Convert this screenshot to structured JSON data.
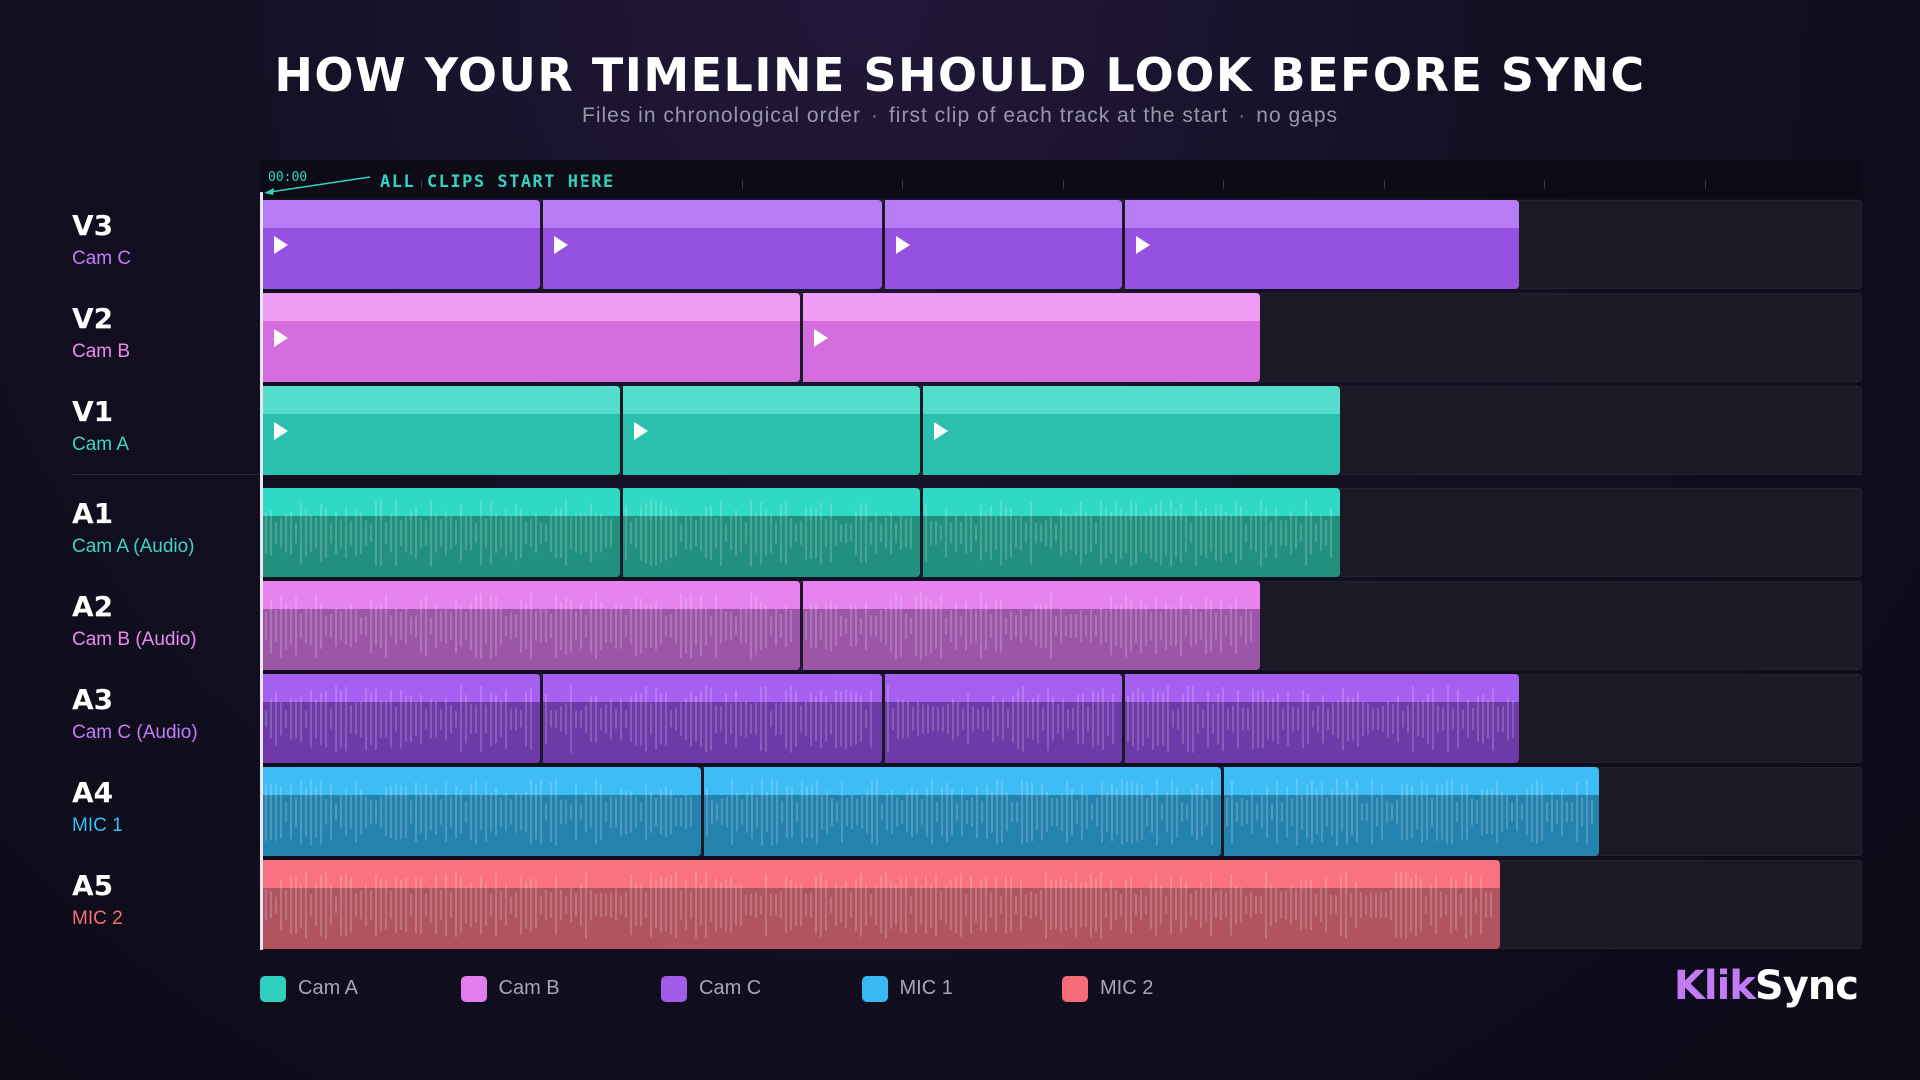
{
  "title": "HOW YOUR TIMELINE SHOULD LOOK BEFORE SYNC",
  "subtitle": {
    "part1": "Files in chronological order",
    "separator": "·",
    "part2": "first clip of each track at the start",
    "part3": "no gaps"
  },
  "ruler": {
    "timecode": "00:00",
    "label": "ALL CLIPS START HERE"
  },
  "colors": {
    "cam_a": {
      "top": "#54ddcd",
      "body": "#2bbfae",
      "audio_top": "#2fd9c3",
      "audio_body": "#22907f"
    },
    "cam_b": {
      "top": "#ee9cf4",
      "body": "#d46ede",
      "audio_top": "#e683ee",
      "audio_body": "#9d55a8"
    },
    "cam_c": {
      "top": "#b77cf5",
      "body": "#9551df",
      "audio_top": "#a560f2",
      "audio_body": "#6d3aa8"
    },
    "mic_1": {
      "audio_top": "#3dbcf6",
      "audio_body": "#2483ae"
    },
    "mic_2": {
      "audio_top": "#f8737f",
      "audio_body": "#b05560"
    }
  },
  "tracks": [
    {
      "code": "V3",
      "name": "Cam C",
      "kind": "video",
      "color": "cam_c",
      "name_color": "#c17cf7",
      "clips": [
        [
          0,
          17.5
        ],
        [
          17.5,
          38.8
        ],
        [
          38.8,
          53.8
        ],
        [
          53.8,
          78.6
        ]
      ]
    },
    {
      "code": "V2",
      "name": "Cam B",
      "kind": "video",
      "color": "cam_b",
      "name_color": "#ea8af2",
      "clips": [
        [
          0,
          33.7
        ],
        [
          33.7,
          62.4
        ]
      ]
    },
    {
      "code": "V1",
      "name": "Cam A",
      "kind": "video",
      "color": "cam_a",
      "name_color": "#3fd5c3",
      "clips": [
        [
          0,
          22.5
        ],
        [
          22.5,
          41.2
        ],
        [
          41.2,
          67.4
        ]
      ]
    },
    {
      "code": "A1",
      "name": "Cam A (Audio)",
      "kind": "audio",
      "color": "cam_a",
      "name_color": "#3fd5c3",
      "clips": [
        [
          0,
          22.5
        ],
        [
          22.5,
          41.2
        ],
        [
          41.2,
          67.4
        ]
      ]
    },
    {
      "code": "A2",
      "name": "Cam B (Audio)",
      "kind": "audio",
      "color": "cam_b",
      "name_color": "#ea8af2",
      "clips": [
        [
          0,
          33.7
        ],
        [
          33.7,
          62.4
        ]
      ]
    },
    {
      "code": "A3",
      "name": "Cam C (Audio)",
      "kind": "audio",
      "color": "cam_c",
      "name_color": "#c17cf7",
      "clips": [
        [
          0,
          17.5
        ],
        [
          17.5,
          38.8
        ],
        [
          38.8,
          53.8
        ],
        [
          53.8,
          78.6
        ]
      ]
    },
    {
      "code": "A4",
      "name": "MIC 1",
      "kind": "audio",
      "color": "mic_1",
      "name_color": "#3bbdf7",
      "clips": [
        [
          0,
          27.5
        ],
        [
          27.5,
          60.0
        ],
        [
          60.0,
          83.6
        ]
      ]
    },
    {
      "code": "A5",
      "name": "MIC 2",
      "kind": "audio",
      "color": "mic_2",
      "name_color": "#f56d7a",
      "clips": [
        [
          0,
          77.4
        ]
      ]
    }
  ],
  "legend": [
    {
      "label": "Cam A",
      "color": "#2fd0bd"
    },
    {
      "label": "Cam B",
      "color": "#e27ded"
    },
    {
      "label": "Cam C",
      "color": "#a25de8"
    },
    {
      "label": "MIC 1",
      "color": "#38b9f3"
    },
    {
      "label": "MIC 2",
      "color": "#f56b78"
    }
  ],
  "brand": {
    "part1": "Klik",
    "part2": "Sync"
  }
}
